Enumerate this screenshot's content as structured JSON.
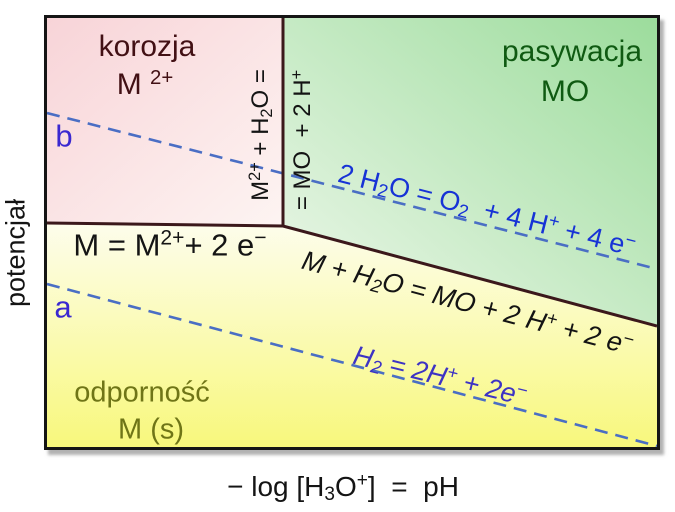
{
  "figure": {
    "type": "pourbaix-diagram",
    "axes": {
      "y_label": "potencjał",
      "x_label_parts": [
        {
          "t": "− log [H"
        },
        {
          "t": "3",
          "s": "sub"
        },
        {
          "t": "O"
        },
        {
          "t": "+",
          "s": "sup"
        },
        {
          "t": "]  =  pH"
        }
      ]
    },
    "regions": {
      "corrosion": {
        "label": "korozja",
        "formula_parts": [
          {
            "t": "M "
          },
          {
            "t": "2+",
            "s": "sup"
          }
        ]
      },
      "passivation": {
        "label": "pasywacja",
        "formula": "MO"
      },
      "immunity": {
        "label": "odporność",
        "formula": "M (s)"
      }
    },
    "boundaries": {
      "metal_ion_parts": [
        {
          "t": "M = M"
        },
        {
          "t": "2+",
          "s": "sup"
        },
        {
          "t": "+ 2 e"
        },
        {
          "t": "−",
          "s": "sup"
        }
      ],
      "ion_oxide_left_parts": [
        {
          "t": "M"
        },
        {
          "t": "2+",
          "s": "sup"
        },
        {
          "t": " + H"
        },
        {
          "t": "2",
          "s": "sub"
        },
        {
          "t": "O ="
        }
      ],
      "ion_oxide_right_parts": [
        {
          "t": "= MO  + 2 H"
        },
        {
          "t": "+",
          "s": "sup"
        }
      ],
      "metal_oxide_parts": [
        {
          "t": "M + H"
        },
        {
          "t": "2",
          "s": "sub"
        },
        {
          "t": "O = MO + 2 H"
        },
        {
          "t": "+",
          "s": "sup"
        },
        {
          "t": " + 2 e"
        },
        {
          "t": "−",
          "s": "sup"
        }
      ]
    },
    "water_lines": {
      "label_a": "a",
      "label_b": "b",
      "oxygen_parts": [
        {
          "t": "2 H"
        },
        {
          "t": "2",
          "s": "sub"
        },
        {
          "t": "O = O"
        },
        {
          "t": "2",
          "s": "sub"
        },
        {
          "t": "  + 4 H"
        },
        {
          "t": "+",
          "s": "sup"
        },
        {
          "t": " + 4 e"
        },
        {
          "t": "−",
          "s": "sup"
        }
      ],
      "hydrogen_parts": [
        {
          "t": "H"
        },
        {
          "t": "2",
          "s": "sub"
        },
        {
          "t": " = 2H"
        },
        {
          "t": "+",
          "s": "sup"
        },
        {
          "t": " + 2e"
        },
        {
          "t": "−",
          "s": "sup"
        }
      ]
    },
    "colors": {
      "frame": "#151515",
      "boundary": "#3b181b",
      "water_line": "#4a6ec4",
      "ab_label": "#3a28d0",
      "oxygen_text": "#1733d6",
      "hydrogen_text": "#3d33c4",
      "equation_text": "#141414",
      "corrosion_text": "#421014",
      "passivation_text": "#0f5a12",
      "immunity_text": "#6f7517",
      "pink_dark": "#f8d4d8",
      "pink_light": "#fdf4f2",
      "green_dark": "#9cdc9c",
      "green_light": "#eff8ec",
      "yellow_dark": "#f8f87c",
      "yellow_light": "#fdfdec"
    }
  }
}
